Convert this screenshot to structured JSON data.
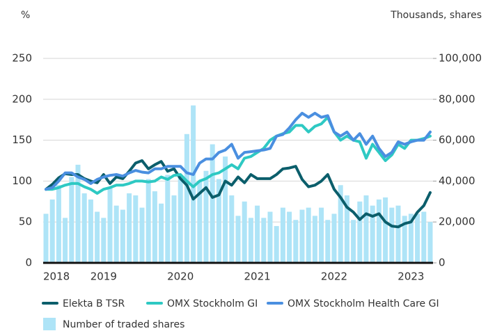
{
  "chart_data": {
    "type": "line",
    "y_label": "%",
    "y2_label": "Thousands, shares",
    "categories": [
      "2018",
      null,
      null,
      null,
      null,
      null,
      null,
      null,
      null,
      "2019",
      null,
      null,
      null,
      null,
      null,
      null,
      null,
      null,
      null,
      null,
      null,
      "2020",
      null,
      null,
      null,
      null,
      null,
      null,
      null,
      null,
      null,
      null,
      null,
      "2021",
      null,
      null,
      null,
      null,
      null,
      null,
      null,
      null,
      null,
      null,
      null,
      "2022",
      null,
      null,
      null,
      null,
      null,
      null,
      null,
      null,
      null,
      null,
      null,
      "2023",
      null,
      null,
      null
    ],
    "ylim": [
      0,
      250
    ],
    "yticks": [
      0,
      50,
      100,
      150,
      200,
      250
    ],
    "y2lim": [
      0,
      100000
    ],
    "y2ticks": [
      0,
      {
        "value": 20000,
        "label": "20,000"
      },
      {
        "value": 40000,
        "label": "40,000"
      },
      {
        "value": 60000,
        "label": "60,000"
      },
      {
        "value": 80000,
        "label": "80,000"
      },
      {
        "value": 100000,
        "label": "100,000"
      }
    ],
    "grid": true,
    "series": [
      {
        "name": "Number of traded shares",
        "type": "bar",
        "axis": "y2",
        "color": "#aee4f7",
        "values": [
          24000,
          31000,
          38000,
          22000,
          42000,
          48000,
          34000,
          31000,
          25000,
          22000,
          37000,
          28000,
          26000,
          34000,
          33000,
          27000,
          41000,
          35000,
          29000,
          43000,
          33000,
          42000,
          63000,
          77000,
          40000,
          45000,
          58000,
          41000,
          52000,
          33000,
          23000,
          30000,
          22000,
          28000,
          22000,
          25000,
          18000,
          27000,
          25000,
          21000,
          26000,
          27000,
          23000,
          27000,
          21000,
          24000,
          38000,
          33000,
          21000,
          30000,
          33000,
          28000,
          31000,
          32000,
          27000,
          28000,
          23000,
          24000,
          24000,
          25000,
          20000
        ]
      },
      {
        "name": "Elekta B TSR",
        "type": "line",
        "color": "#0b5e6b",
        "values": [
          90,
          96,
          104,
          109,
          108,
          108,
          103,
          100,
          98,
          108,
          97,
          105,
          103,
          112,
          122,
          125,
          115,
          120,
          124,
          112,
          115,
          103,
          95,
          78,
          85,
          92,
          80,
          83,
          100,
          95,
          105,
          98,
          108,
          103,
          103,
          103,
          108,
          115,
          116,
          118,
          102,
          93,
          95,
          100,
          108,
          90,
          80,
          68,
          62,
          53,
          60,
          57,
          60,
          50,
          45,
          44,
          48,
          50,
          62,
          70,
          86
        ]
      },
      {
        "name": "OMX Stockholm GI",
        "type": "line",
        "color": "#2ec9c3",
        "values": [
          90,
          90,
          92,
          95,
          97,
          97,
          93,
          90,
          85,
          90,
          92,
          95,
          95,
          97,
          100,
          100,
          99,
          100,
          105,
          102,
          107,
          108,
          100,
          93,
          100,
          103,
          108,
          110,
          115,
          120,
          115,
          128,
          130,
          135,
          140,
          150,
          155,
          158,
          160,
          168,
          168,
          160,
          167,
          170,
          178,
          160,
          150,
          155,
          150,
          148,
          128,
          145,
          135,
          125,
          132,
          145,
          140,
          150,
          150,
          152,
          155
        ]
      },
      {
        "name": "OMX Stockholm Health Care GI",
        "type": "line",
        "color": "#4a8fe0",
        "values": [
          90,
          92,
          100,
          110,
          110,
          105,
          102,
          97,
          102,
          105,
          107,
          108,
          106,
          110,
          113,
          111,
          110,
          115,
          115,
          118,
          118,
          118,
          110,
          108,
          122,
          127,
          127,
          135,
          138,
          145,
          128,
          135,
          136,
          137,
          138,
          140,
          155,
          157,
          165,
          175,
          183,
          178,
          183,
          178,
          180,
          160,
          155,
          160,
          150,
          158,
          145,
          155,
          140,
          130,
          135,
          148,
          145,
          148,
          150,
          150,
          160
        ]
      }
    ]
  }
}
